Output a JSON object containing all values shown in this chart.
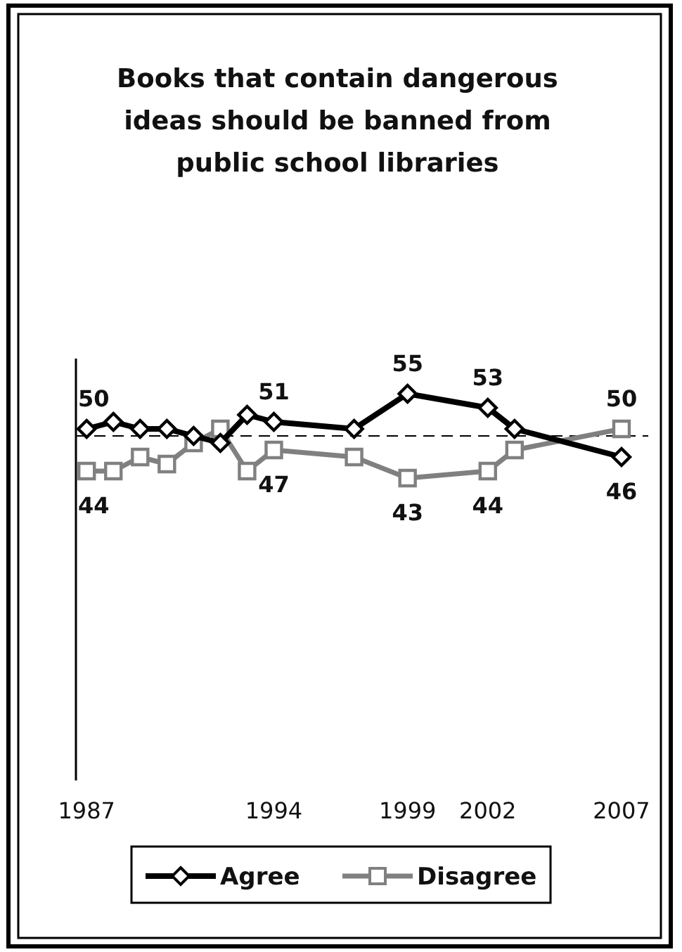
{
  "chart_data": {
    "type": "line",
    "title": "Books that contain dangerous ideas should be banned from public school libraries",
    "x": [
      1987,
      1988,
      1989,
      1990,
      1991,
      1992,
      1993,
      1994,
      1997,
      1999,
      2002,
      2003,
      2007
    ],
    "xlim": [
      1986.6,
      2008
    ],
    "xticks": [
      1987,
      1994,
      1999,
      2002,
      2007
    ],
    "ylim": [
      0,
      60
    ],
    "tick_labels": "x",
    "legend": "bottom",
    "ref_lines": [
      {
        "axis": "y",
        "value": 49,
        "color": "#000000",
        "line_style": "dashed"
      }
    ],
    "series": [
      {
        "name": "Agree",
        "color": "#000000",
        "marker": "diamond",
        "values": [
          50,
          51,
          50,
          50,
          49,
          48,
          52,
          51,
          50,
          55,
          53,
          50,
          46
        ],
        "value_labels": [
          "50",
          null,
          null,
          null,
          null,
          null,
          null,
          "51",
          null,
          "55",
          "53",
          null,
          "46"
        ]
      },
      {
        "name": "Disagree",
        "color": "#808080",
        "marker": "square",
        "values": [
          44,
          44,
          46,
          45,
          48,
          50,
          44,
          47,
          46,
          43,
          44,
          47,
          50
        ],
        "value_labels": [
          "44",
          null,
          null,
          null,
          null,
          null,
          null,
          "47",
          null,
          "43",
          "44",
          null,
          "50"
        ]
      }
    ]
  }
}
